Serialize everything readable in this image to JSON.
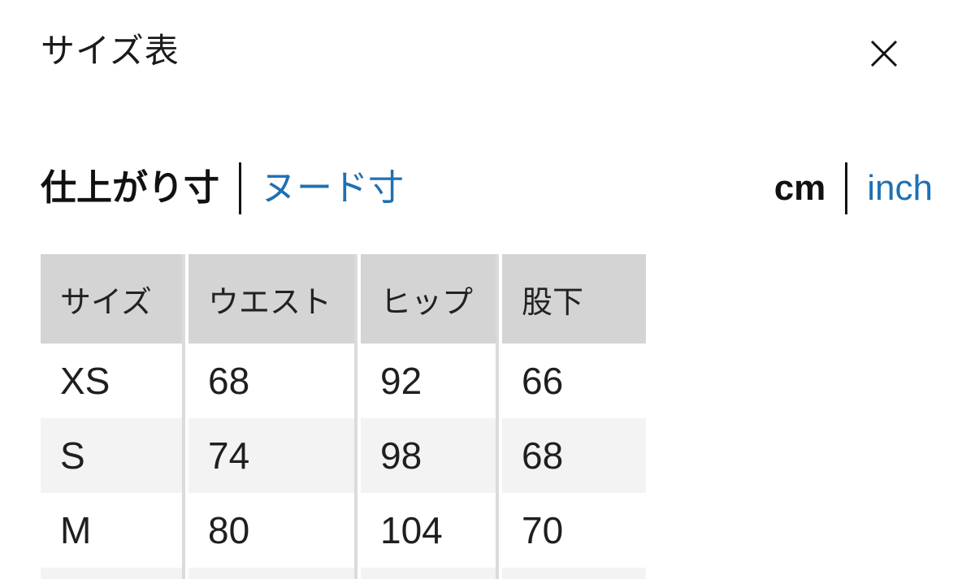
{
  "modal": {
    "title": "サイズ表"
  },
  "measure_toggle": {
    "options": [
      {
        "label": "仕上がり寸",
        "selected": true
      },
      {
        "label": "ヌード寸",
        "selected": false
      }
    ]
  },
  "unit_toggle": {
    "options": [
      {
        "label": "cm",
        "selected": true
      },
      {
        "label": "inch",
        "selected": false
      }
    ]
  },
  "icons": {
    "close": "close-icon"
  },
  "colors": {
    "link_blue": "#1f70b2",
    "text_black": "#1a1a1a",
    "table_header_bg": "#d4d4d5",
    "table_alt_row_bg": "#f3f3f4",
    "table_divider": "#dadbdc"
  },
  "size_table": {
    "columns": [
      "サイズ",
      "ウエスト",
      "ヒップ",
      "股下"
    ],
    "rows": [
      {
        "size": "XS",
        "values": [
          "68",
          "92",
          "66"
        ]
      },
      {
        "size": "S",
        "values": [
          "74",
          "98",
          "68"
        ]
      },
      {
        "size": "M",
        "values": [
          "80",
          "104",
          "70"
        ]
      }
    ],
    "next_row_partially_visible": true
  }
}
